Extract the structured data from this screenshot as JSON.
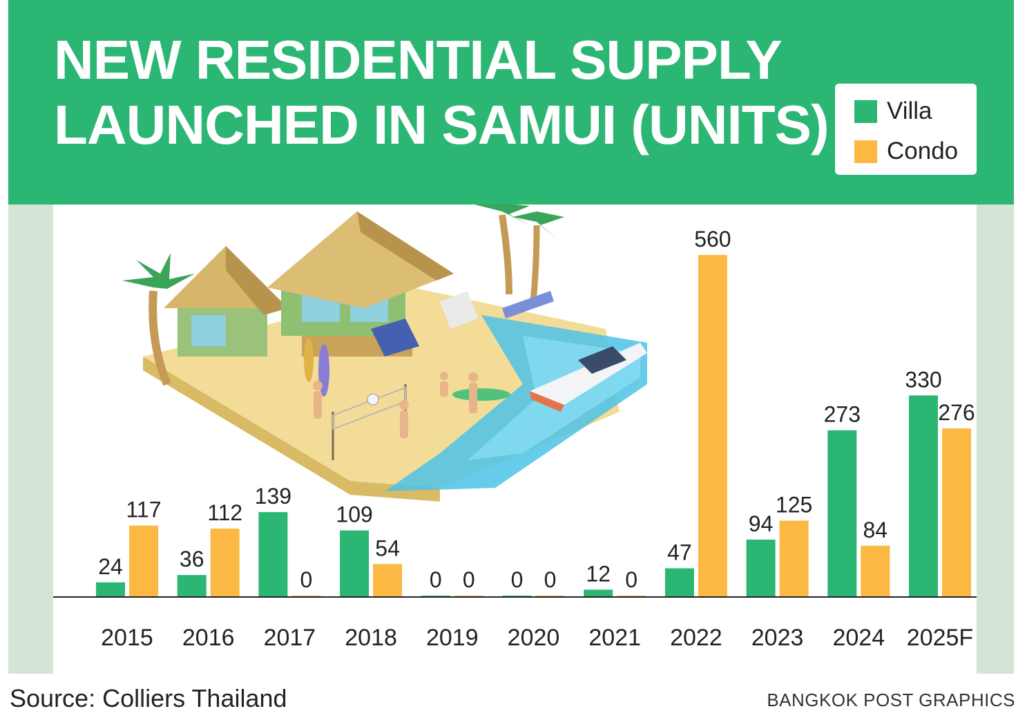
{
  "header": {
    "title_line1": "NEW RESIDENTIAL SUPPLY",
    "title_line2": "LAUNCHED IN SAMUI (UNITS)"
  },
  "legend": {
    "items": [
      {
        "label": "Villa",
        "color": "#2bb673"
      },
      {
        "label": "Condo",
        "color": "#fbb843"
      }
    ]
  },
  "colors": {
    "header_green": "#2bb673",
    "frame": "#d4e4d6",
    "villa": "#2bb673",
    "condo": "#fbb843"
  },
  "illustration": {
    "icon": "beach-resort-illustration"
  },
  "chart_data": {
    "type": "bar",
    "title": "NEW RESIDENTIAL SUPPLY LAUNCHED IN SAMUI (UNITS)",
    "categories": [
      "2015",
      "2016",
      "2017",
      "2018",
      "2019",
      "2020",
      "2021",
      "2022",
      "2023",
      "2024",
      "2025F"
    ],
    "series": [
      {
        "name": "Villa",
        "color": "#2bb673",
        "values": [
          24,
          36,
          139,
          109,
          0,
          0,
          12,
          47,
          94,
          273,
          330
        ]
      },
      {
        "name": "Condo",
        "color": "#fbb843",
        "values": [
          117,
          112,
          0,
          54,
          0,
          0,
          0,
          560,
          125,
          84,
          276
        ]
      }
    ],
    "ylim": [
      0,
      560
    ],
    "grid": false,
    "legend_position": "top-right",
    "data_labels": true
  },
  "footer": {
    "source": "Source: Colliers Thailand",
    "credit": "BANGKOK POST GRAPHICS"
  }
}
